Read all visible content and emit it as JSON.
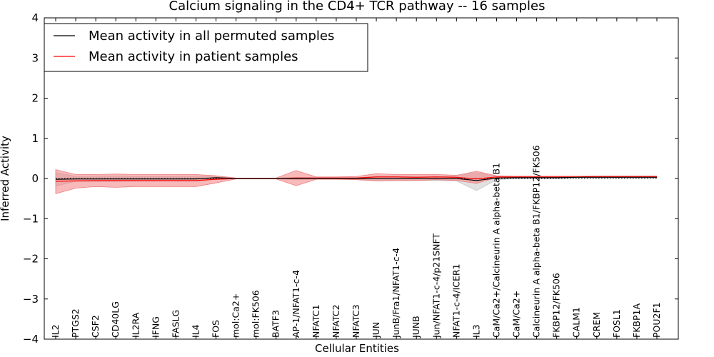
{
  "chart_data": {
    "type": "line",
    "title": "Calcium signaling in the CD4+ TCR pathway -- 16 samples",
    "xlabel": "Cellular Entities",
    "ylabel": "Inferred Activity",
    "ylim": [
      -4,
      4
    ],
    "yticks": [
      "−4",
      "−3",
      "−2",
      "−1",
      "0",
      "1",
      "2",
      "3",
      "4"
    ],
    "grid": false,
    "legend_position": "top-left",
    "categories": [
      "IL2",
      "PTGS2",
      "CSF2",
      "CD40LG",
      "IL2RA",
      "IFNG",
      "FASLG",
      "IL4",
      "FOS",
      "mol:Ca2+",
      "mol:FK506",
      "BATF3",
      "AP-1/NFAT1-c-4",
      "NFATC1",
      "NFATC2",
      "NFATC3",
      "JUN",
      "JunB/Fra1/NFAT1-c-4",
      "JUNB",
      "Jun/NFAT1-c-4/p21SNFT",
      "NFAT1-c-4/ICER1",
      "IL3",
      "CaM/Ca2+/Calcineurin A alpha-beta B1",
      "CaM/Ca2+",
      "Calcineurin A alpha-beta B1/FKBP12/FK506",
      "FKBP12/FK506",
      "CALM1",
      "CREM",
      "FOSL1",
      "FKBP1A",
      "POU2F1"
    ],
    "series": [
      {
        "name": "Mean activity in all permuted samples",
        "color": "#000000",
        "band_color": "#c8c8c8",
        "values": [
          -0.02,
          -0.01,
          -0.01,
          -0.01,
          -0.01,
          -0.01,
          -0.01,
          -0.01,
          0.02,
          0.0,
          0.0,
          0.0,
          0.0,
          0.0,
          0.0,
          0.0,
          0.0,
          0.0,
          0.0,
          0.0,
          0.0,
          -0.05,
          0.01,
          0.02,
          0.02,
          0.02,
          0.03,
          0.03,
          0.03,
          0.03,
          0.03
        ],
        "band_upper": [
          0.15,
          0.05,
          0.06,
          0.06,
          0.05,
          0.05,
          0.05,
          0.06,
          0.06,
          0.01,
          0.01,
          0.01,
          0.03,
          0.02,
          0.02,
          0.02,
          0.05,
          0.05,
          0.05,
          0.05,
          0.06,
          0.15,
          0.05,
          0.05,
          0.04,
          0.04,
          0.04,
          0.04,
          0.04,
          0.04,
          0.04
        ],
        "band_lower": [
          -0.19,
          -0.07,
          -0.08,
          -0.08,
          -0.07,
          -0.07,
          -0.07,
          -0.07,
          -0.02,
          -0.01,
          -0.01,
          -0.01,
          -0.03,
          -0.02,
          -0.02,
          -0.02,
          -0.05,
          -0.05,
          -0.05,
          -0.05,
          -0.06,
          -0.3,
          -0.03,
          0.0,
          0.0,
          0.0,
          0.0,
          0.0,
          0.0,
          0.0,
          0.0
        ]
      },
      {
        "name": "Mean activity in patient samples",
        "color": "#ff0000",
        "band_color": "#f08080",
        "values": [
          -0.07,
          -0.06,
          -0.05,
          -0.05,
          -0.05,
          -0.05,
          -0.05,
          -0.05,
          -0.02,
          0.0,
          0.0,
          0.0,
          0.01,
          0.01,
          0.01,
          0.01,
          0.04,
          0.04,
          0.03,
          0.04,
          0.03,
          -0.01,
          0.04,
          0.04,
          0.04,
          0.04,
          0.04,
          0.05,
          0.05,
          0.05,
          0.05
        ],
        "band_upper": [
          0.22,
          0.1,
          0.1,
          0.11,
          0.1,
          0.1,
          0.1,
          0.1,
          0.07,
          0.01,
          0.01,
          0.01,
          0.2,
          0.04,
          0.04,
          0.05,
          0.12,
          0.1,
          0.1,
          0.1,
          0.08,
          0.18,
          0.07,
          0.06,
          0.06,
          0.06,
          0.06,
          0.06,
          0.06,
          0.06,
          0.06
        ],
        "band_lower": [
          -0.38,
          -0.24,
          -0.2,
          -0.22,
          -0.2,
          -0.2,
          -0.2,
          -0.2,
          -0.11,
          -0.01,
          -0.01,
          -0.01,
          -0.18,
          -0.02,
          -0.02,
          -0.03,
          -0.06,
          -0.05,
          -0.05,
          -0.03,
          -0.05,
          -0.12,
          0.02,
          0.02,
          0.02,
          0.02,
          0.03,
          0.03,
          0.03,
          0.03,
          0.03
        ]
      }
    ],
    "reference_line": {
      "y": 0,
      "style": "dotted",
      "color": "#000000"
    }
  }
}
